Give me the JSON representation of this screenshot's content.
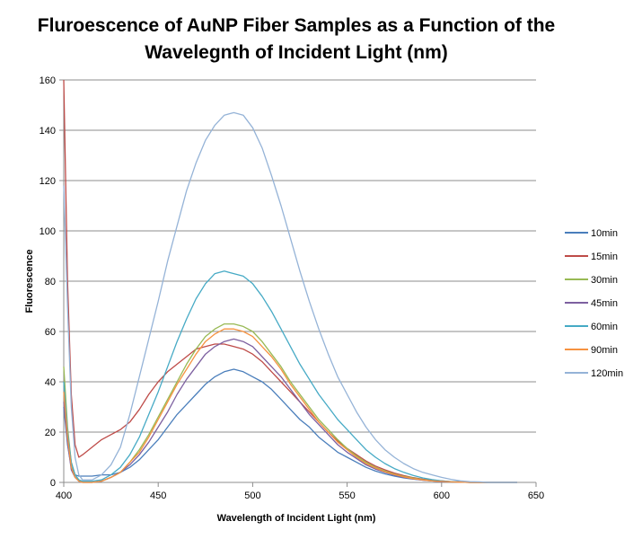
{
  "chart_data": {
    "type": "line",
    "title": "Fluroescence of AuNP Fiber Samples as a Function of the Wavelegnth of Incident Light (nm)",
    "title_lines": [
      "Fluroescence of AuNP Fiber Samples as a Function of the",
      "Wavelegnth of Incident Light (nm)"
    ],
    "xlabel": "Wavelength of Incident Light (nm)",
    "ylabel": "Fluorescence",
    "xlim": [
      400,
      650
    ],
    "ylim": [
      0,
      160
    ],
    "xticks": [
      400,
      450,
      500,
      550,
      600,
      650
    ],
    "yticks": [
      0,
      20,
      40,
      60,
      80,
      100,
      120,
      140,
      160
    ],
    "grid": "horizontal",
    "legend": "right",
    "x": [
      400,
      402,
      404,
      406,
      408,
      410,
      415,
      420,
      425,
      430,
      435,
      440,
      445,
      450,
      455,
      460,
      465,
      470,
      475,
      480,
      485,
      490,
      495,
      500,
      505,
      510,
      515,
      520,
      525,
      530,
      535,
      540,
      545,
      550,
      555,
      560,
      565,
      570,
      575,
      580,
      585,
      590,
      595,
      600,
      605,
      610,
      615,
      620,
      625,
      630,
      635,
      640
    ],
    "series": [
      {
        "name": "10min",
        "color": "#4a7ebb",
        "values": [
          30,
          15,
          6,
          3,
          2.5,
          2.5,
          2.5,
          3,
          3,
          4,
          6,
          9,
          13,
          17,
          22,
          27,
          31,
          35,
          39,
          42,
          44,
          45,
          44,
          42,
          40,
          37,
          33,
          29,
          25,
          22,
          18,
          15,
          12,
          10,
          8,
          6,
          4.5,
          3.4,
          2.5,
          1.8,
          1.3,
          0.9,
          0.6,
          0.4,
          0.2,
          0.1,
          0,
          0,
          0,
          0,
          0,
          0
        ]
      },
      {
        "name": "15min",
        "color": "#be4b48",
        "values": [
          160,
          80,
          35,
          15,
          10,
          11,
          14,
          17,
          19,
          21,
          24,
          29,
          35,
          40,
          44,
          47,
          50,
          53,
          54,
          55,
          55,
          54,
          53,
          51,
          48,
          44,
          40,
          36,
          32,
          28,
          24,
          20,
          16.5,
          13.5,
          11,
          8.5,
          6.5,
          5,
          3.7,
          2.7,
          1.9,
          1.3,
          0.9,
          0.6,
          0.3,
          0.2,
          0,
          0,
          0,
          0,
          0,
          0
        ]
      },
      {
        "name": "30min",
        "color": "#98b954",
        "values": [
          46,
          22,
          8,
          3,
          1,
          0,
          0,
          0.5,
          2,
          4,
          8,
          13,
          19,
          26,
          33,
          40,
          47,
          53,
          58,
          61,
          63,
          63,
          62,
          60,
          56,
          51,
          46,
          40,
          35,
          30,
          25,
          21,
          17,
          13.5,
          10.5,
          8,
          6,
          4.5,
          3.3,
          2.4,
          1.7,
          1.1,
          0.7,
          0.4,
          0.2,
          0.1,
          0,
          0,
          0,
          0,
          0,
          0
        ]
      },
      {
        "name": "45min",
        "color": "#7d60a0",
        "values": [
          32,
          16,
          5,
          2,
          0.5,
          0,
          0,
          0.5,
          2,
          4,
          7,
          11,
          16,
          22,
          28,
          35,
          41,
          46,
          51,
          54,
          56,
          57,
          56,
          54,
          50,
          46,
          42,
          37,
          32,
          27,
          23,
          19,
          15,
          12,
          9.5,
          7,
          5.3,
          4,
          2.9,
          2,
          1.4,
          0.9,
          0.6,
          0.3,
          0.2,
          0.1,
          0,
          0,
          0,
          0,
          0,
          0
        ]
      },
      {
        "name": "60min",
        "color": "#46aac5",
        "values": [
          40,
          20,
          8,
          3,
          1,
          0.5,
          0.5,
          1,
          3,
          6,
          11,
          18,
          27,
          36,
          46,
          56,
          65,
          73,
          79,
          83,
          84,
          83,
          82,
          79,
          74,
          68,
          61,
          54,
          47,
          41,
          35,
          30,
          25,
          21,
          17,
          13,
          10,
          7.5,
          5.5,
          4,
          2.8,
          1.8,
          1.1,
          0.6,
          0.3,
          0.2,
          0,
          0,
          0,
          0,
          0,
          0
        ]
      },
      {
        "name": "90min",
        "color": "#f69240",
        "values": [
          36,
          18,
          6,
          2,
          0.5,
          0,
          0,
          0.5,
          2,
          4,
          8,
          12,
          18,
          25,
          32,
          39,
          45,
          51,
          56,
          59,
          61,
          61,
          60,
          58,
          54,
          50,
          45,
          39,
          34,
          29,
          24,
          20,
          16,
          13,
          10,
          7.5,
          5.7,
          4.2,
          3.1,
          2.2,
          1.5,
          1,
          0.6,
          0.4,
          0.2,
          0.1,
          0,
          0,
          0,
          0,
          0,
          0
        ]
      },
      {
        "name": "120min",
        "color": "#95b3d7",
        "values": [
          118,
          70,
          30,
          10,
          3,
          1,
          1,
          3,
          7,
          14,
          27,
          42,
          57,
          72,
          88,
          102,
          116,
          127,
          136,
          142,
          146,
          147,
          146,
          141,
          133,
          122,
          110,
          97,
          84,
          72,
          61,
          51,
          42,
          35,
          28,
          22,
          17,
          13,
          10,
          7.5,
          5.5,
          4,
          3,
          2,
          1.2,
          0.6,
          0.3,
          0.2,
          0,
          0,
          0,
          0
        ]
      }
    ]
  }
}
